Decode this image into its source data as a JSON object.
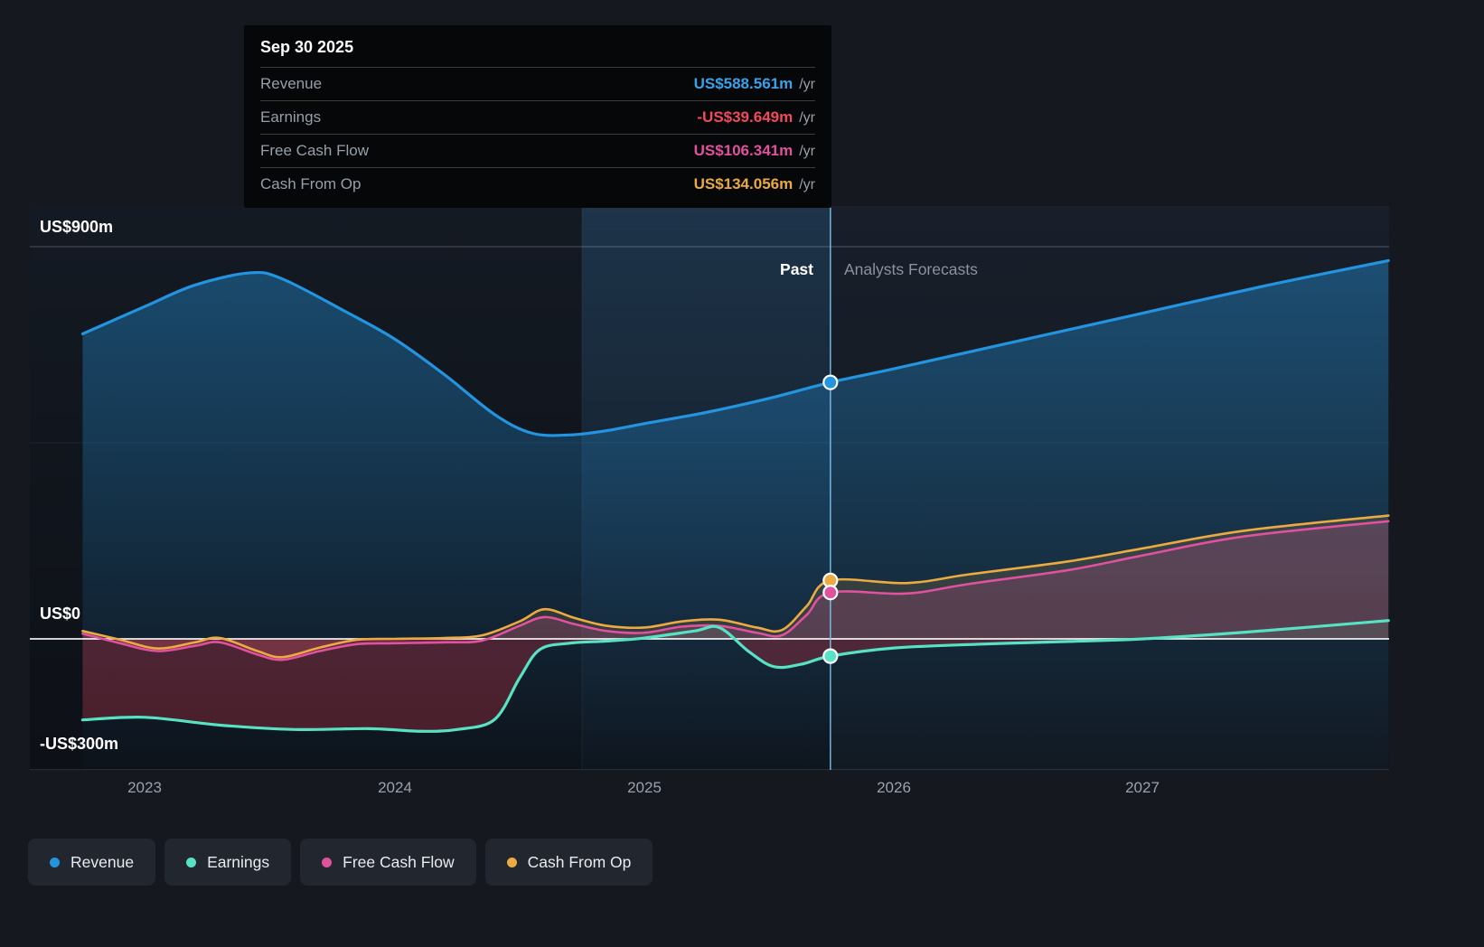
{
  "tooltip": {
    "date": "Sep 30 2025",
    "rows": [
      {
        "label": "Revenue",
        "value": "US$588.561m",
        "suffix": "/yr",
        "color": "#3ba1ea"
      },
      {
        "label": "Earnings",
        "value": "-US$39.649m",
        "suffix": "/yr",
        "color": "#f2495f"
      },
      {
        "label": "Free Cash Flow",
        "value": "US$106.341m",
        "suffix": "/yr",
        "color": "#e0519e"
      },
      {
        "label": "Cash From Op",
        "value": "US$134.056m",
        "suffix": "/yr",
        "color": "#ebaa42"
      }
    ]
  },
  "annotations": {
    "past": "Past",
    "forecast": "Analysts Forecasts"
  },
  "y_axis": {
    "top_label": "US$900m",
    "zero_label": "US$0",
    "bottom_label": "-US$300m"
  },
  "x_axis": [
    "2023",
    "2024",
    "2025",
    "2026",
    "2027"
  ],
  "legend": [
    {
      "label": "Revenue",
      "color": "#2394df"
    },
    {
      "label": "Earnings",
      "color": "#57e2c3"
    },
    {
      "label": "Free Cash Flow",
      "color": "#e0519e"
    },
    {
      "label": "Cash From Op",
      "color": "#ebaa42"
    }
  ],
  "chart_data": {
    "type": "area",
    "title": "Past and forecast Revenue, Earnings, Free Cash Flow and Cash From Op (US$ millions per year)",
    "x_unit": "year",
    "x_range": [
      2022.75,
      2027.98
    ],
    "y_range": [
      -300,
      900
    ],
    "y_gridlines": [
      900,
      450,
      0,
      -300
    ],
    "x_ticks": [
      2023,
      2024,
      2025,
      2026,
      2027
    ],
    "divider_year": 2025.745,
    "divider_date": "Sep 30 2025",
    "highlight_band_years": [
      2024.75,
      2025.745
    ],
    "legend_position": "bottom",
    "series": [
      {
        "name": "Revenue",
        "color": "#2394df",
        "fill": "to-bottom",
        "marker_value": 588.561,
        "points": [
          [
            2022.75,
            700
          ],
          [
            2023.0,
            763
          ],
          [
            2023.2,
            812
          ],
          [
            2023.42,
            840
          ],
          [
            2023.55,
            826
          ],
          [
            2023.8,
            752
          ],
          [
            2024.0,
            688
          ],
          [
            2024.2,
            606
          ],
          [
            2024.4,
            515
          ],
          [
            2024.55,
            472
          ],
          [
            2024.7,
            468
          ],
          [
            2024.85,
            478
          ],
          [
            2025.0,
            494
          ],
          [
            2025.25,
            520
          ],
          [
            2025.5,
            552
          ],
          [
            2025.745,
            588.561
          ],
          [
            2026.0,
            620
          ],
          [
            2026.5,
            684
          ],
          [
            2027.0,
            748
          ],
          [
            2027.5,
            812
          ],
          [
            2027.98,
            868
          ]
        ]
      },
      {
        "name": "Cash From Op",
        "color": "#ebaa42",
        "fill": "to-zero",
        "marker_value": 134.056,
        "points": [
          [
            2022.75,
            18
          ],
          [
            2022.9,
            -2
          ],
          [
            2023.05,
            -22
          ],
          [
            2023.2,
            -8
          ],
          [
            2023.3,
            2
          ],
          [
            2023.45,
            -28
          ],
          [
            2023.55,
            -42
          ],
          [
            2023.7,
            -20
          ],
          [
            2023.85,
            -2
          ],
          [
            2024.0,
            0
          ],
          [
            2024.2,
            2
          ],
          [
            2024.35,
            8
          ],
          [
            2024.5,
            40
          ],
          [
            2024.6,
            68
          ],
          [
            2024.72,
            48
          ],
          [
            2024.85,
            30
          ],
          [
            2025.0,
            26
          ],
          [
            2025.15,
            40
          ],
          [
            2025.3,
            44
          ],
          [
            2025.45,
            26
          ],
          [
            2025.55,
            20
          ],
          [
            2025.65,
            75
          ],
          [
            2025.745,
            134.056
          ],
          [
            2026.05,
            128
          ],
          [
            2026.3,
            148
          ],
          [
            2026.7,
            178
          ],
          [
            2027.0,
            208
          ],
          [
            2027.4,
            248
          ],
          [
            2027.98,
            283
          ]
        ]
      },
      {
        "name": "Free Cash Flow",
        "color": "#e0519e",
        "fill": "to-zero",
        "marker_value": 106.341,
        "points": [
          [
            2022.75,
            12
          ],
          [
            2022.9,
            -10
          ],
          [
            2023.05,
            -28
          ],
          [
            2023.2,
            -16
          ],
          [
            2023.3,
            -8
          ],
          [
            2023.45,
            -36
          ],
          [
            2023.55,
            -48
          ],
          [
            2023.7,
            -28
          ],
          [
            2023.85,
            -12
          ],
          [
            2024.0,
            -10
          ],
          [
            2024.2,
            -8
          ],
          [
            2024.35,
            -4
          ],
          [
            2024.5,
            30
          ],
          [
            2024.6,
            50
          ],
          [
            2024.72,
            34
          ],
          [
            2024.85,
            18
          ],
          [
            2025.0,
            14
          ],
          [
            2025.15,
            28
          ],
          [
            2025.3,
            30
          ],
          [
            2025.45,
            14
          ],
          [
            2025.55,
            8
          ],
          [
            2025.65,
            55
          ],
          [
            2025.745,
            106.341
          ],
          [
            2026.05,
            104
          ],
          [
            2026.3,
            126
          ],
          [
            2026.7,
            158
          ],
          [
            2027.0,
            192
          ],
          [
            2027.4,
            235
          ],
          [
            2027.98,
            270
          ]
        ]
      },
      {
        "name": "Earnings",
        "color": "#57e2c3",
        "fill": "neg-red",
        "marker_value": -39.649,
        "points": [
          [
            2022.75,
            -186
          ],
          [
            2023.0,
            -180
          ],
          [
            2023.3,
            -198
          ],
          [
            2023.6,
            -208
          ],
          [
            2023.9,
            -206
          ],
          [
            2024.1,
            -212
          ],
          [
            2024.25,
            -208
          ],
          [
            2024.4,
            -185
          ],
          [
            2024.5,
            -90
          ],
          [
            2024.58,
            -25
          ],
          [
            2024.7,
            -10
          ],
          [
            2024.85,
            -5
          ],
          [
            2025.0,
            2
          ],
          [
            2025.2,
            18
          ],
          [
            2025.3,
            26
          ],
          [
            2025.42,
            -30
          ],
          [
            2025.52,
            -64
          ],
          [
            2025.63,
            -58
          ],
          [
            2025.745,
            -39.649
          ],
          [
            2026.0,
            -21
          ],
          [
            2026.35,
            -12
          ],
          [
            2026.7,
            -6
          ],
          [
            2027.0,
            0
          ],
          [
            2027.4,
            15
          ],
          [
            2027.98,
            42
          ]
        ]
      }
    ]
  }
}
